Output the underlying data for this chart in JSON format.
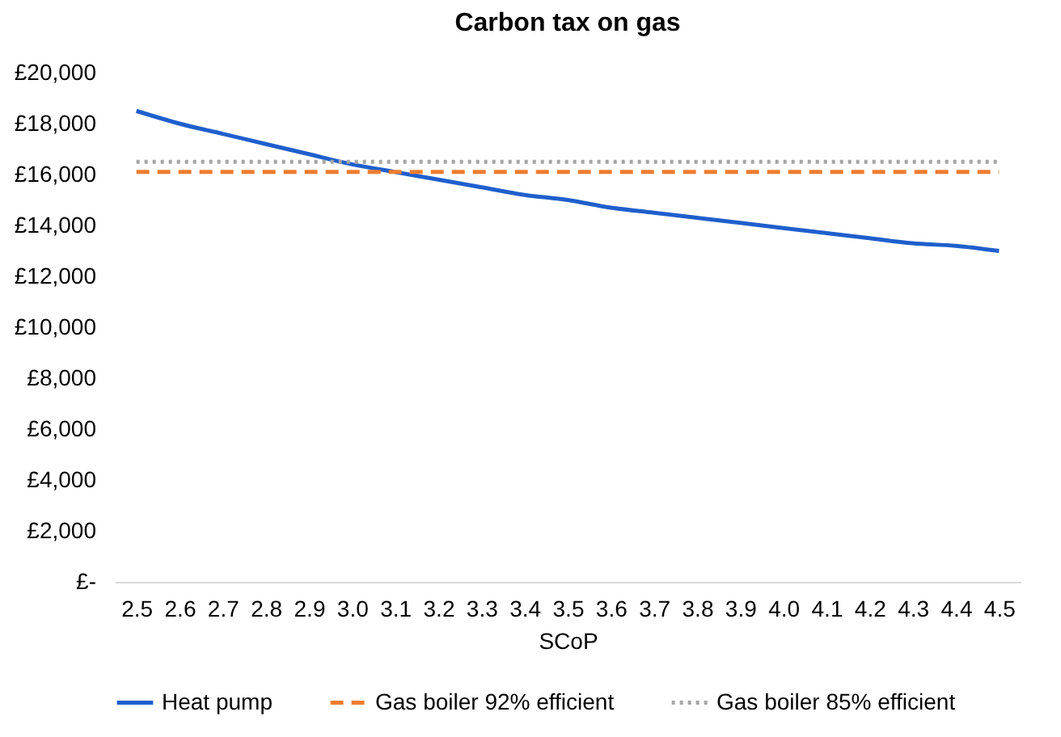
{
  "chart_data": {
    "type": "line",
    "title": "Carbon tax on gas",
    "xlabel": "SCoP",
    "categories": [
      "2.5",
      "2.6",
      "2.7",
      "2.8",
      "2.9",
      "3.0",
      "3.1",
      "3.2",
      "3.3",
      "3.4",
      "3.5",
      "3.6",
      "3.7",
      "3.8",
      "3.9",
      "4.0",
      "4.1",
      "4.2",
      "4.3",
      "4.4",
      "4.5"
    ],
    "series": [
      {
        "name": "Heat pump",
        "color": "#1f5fcc",
        "line_style": "solid",
        "values": [
          18500,
          18000,
          17600,
          17200,
          16800,
          16400,
          16100,
          15800,
          15500,
          15200,
          15000,
          14700,
          14500,
          14300,
          14100,
          13900,
          13700,
          13500,
          13300,
          13200,
          13000
        ]
      },
      {
        "name": "Gas boiler 92% efficient",
        "color": "#ed7d31",
        "line_style": "dashed",
        "values": [
          16100,
          16100,
          16100,
          16100,
          16100,
          16100,
          16100,
          16100,
          16100,
          16100,
          16100,
          16100,
          16100,
          16100,
          16100,
          16100,
          16100,
          16100,
          16100,
          16100,
          16100
        ]
      },
      {
        "name": "Gas boiler 85% efficient",
        "color": "#a5a5a5",
        "line_style": "dotted",
        "values": [
          16500,
          16500,
          16500,
          16500,
          16500,
          16500,
          16500,
          16500,
          16500,
          16500,
          16500,
          16500,
          16500,
          16500,
          16500,
          16500,
          16500,
          16500,
          16500,
          16500,
          16500
        ]
      }
    ],
    "ylim": [
      0,
      20000
    ],
    "yticks": [
      {
        "value": 0,
        "label": "£-"
      },
      {
        "value": 2000,
        "label": "£2,000"
      },
      {
        "value": 4000,
        "label": "£4,000"
      },
      {
        "value": 6000,
        "label": "£6,000"
      },
      {
        "value": 8000,
        "label": "£8,000"
      },
      {
        "value": 10000,
        "label": "£10,000"
      },
      {
        "value": 12000,
        "label": "£12,000"
      },
      {
        "value": 14000,
        "label": "£14,000"
      },
      {
        "value": 16000,
        "label": "£16,000"
      },
      {
        "value": 18000,
        "label": "£18,000"
      },
      {
        "value": 20000,
        "label": "£20,000"
      }
    ],
    "grid": false,
    "legend": "bottom",
    "marker": "none"
  }
}
